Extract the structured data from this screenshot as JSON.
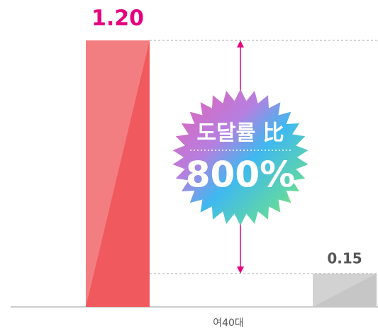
{
  "chart_data": {
    "type": "bar",
    "category_label": "여40대",
    "values": [
      1.2,
      0.15
    ],
    "value_labels": [
      "1.20",
      "0.15"
    ],
    "colors": [
      "#f05a5e",
      "#c6c6c6"
    ],
    "label_colors": [
      "#e5007f",
      "#555555"
    ],
    "annotation": {
      "title": "도달률 比",
      "value": "800%"
    }
  }
}
